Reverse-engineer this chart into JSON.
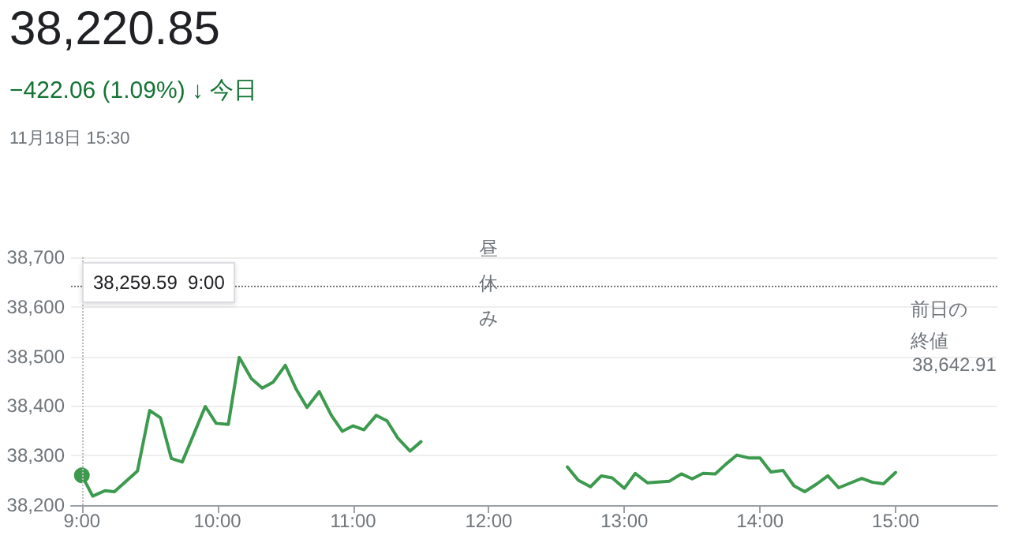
{
  "chart_data": {
    "type": "line",
    "title": "38,220.85",
    "subtitle": "−422.06 (1.09%) ↓ 今日",
    "annotations": [
      "11月18日 15:30",
      "38,259.59  9:00",
      "38,642.91",
      {
        "text": "昼休み",
        "x": 12,
        "y": 38648
      }
    ],
    "x": [
      9,
      9.08,
      9.17,
      9.24,
      9.41,
      9.5,
      9.58,
      9.66,
      9.74,
      9.91,
      9.99,
      10.08,
      10.16,
      10.25,
      10.33,
      10.41,
      10.5,
      10.58,
      10.66,
      10.75,
      10.84,
      10.92,
      11,
      11.08,
      11.17,
      11.25,
      11.33,
      11.42,
      11.5,
      12,
      12.58,
      12.66,
      12.75,
      12.83,
      12.91,
      13,
      13.08,
      13.17,
      13.33,
      13.42,
      13.5,
      13.58,
      13.67,
      13.75,
      13.83,
      13.92,
      14,
      14.08,
      14.17,
      14.25,
      14.33,
      14.42,
      14.5,
      14.58,
      14.67,
      14.75,
      14.83,
      14.91,
      15
    ],
    "series": [
      {
        "color": "#3c9a4e",
        "values": [
          38260,
          38218,
          38229,
          38227,
          38269,
          38391,
          38376,
          38294,
          38287,
          38399,
          38365,
          38363,
          38498,
          38455,
          38436,
          38448,
          38482,
          38434,
          38397,
          38429,
          38381,
          38349,
          38360,
          38352,
          38381,
          38370,
          38335,
          38309,
          38328,
          null,
          38277,
          38250,
          38237,
          38259,
          38255,
          38234,
          38264,
          38245,
          38248,
          38263,
          38253,
          38264,
          38263,
          38283,
          38301,
          38295,
          38295,
          38267,
          38270,
          38239,
          38227,
          38243,
          38259,
          38235,
          38245,
          38254,
          38246,
          38243,
          38266
        ]
      }
    ],
    "xlim": [
      8.92,
      15.75
    ],
    "xticks": [
      {
        "value": 9,
        "label": "9:00"
      },
      {
        "value": 10,
        "label": "10:00"
      },
      {
        "value": 11,
        "label": "11:00"
      },
      {
        "value": 12,
        "label": "12:00"
      },
      {
        "value": 13,
        "label": "13:00"
      },
      {
        "value": 14,
        "label": "14:00"
      },
      {
        "value": 15,
        "label": "15:00"
      }
    ],
    "ylim": [
      38200,
      38700
    ],
    "yticks": [
      {
        "value": 38200,
        "label": "38,200"
      },
      {
        "value": 38300,
        "label": "38,300"
      },
      {
        "value": 38400,
        "label": "38,400"
      },
      {
        "value": 38500,
        "label": "38,500"
      },
      {
        "value": 38600,
        "label": "38,600"
      },
      {
        "value": 38700,
        "label": "38,700"
      }
    ],
    "ref_lines": [
      {
        "axis": "y",
        "value": 38642.91,
        "label": "前日の終値",
        "color": "#777777",
        "line_style": "dotted"
      },
      {
        "axis": "x",
        "value": 9,
        "color": "#bbbbbb",
        "line_style": "dotted"
      }
    ],
    "grid": "y",
    "marker": "none",
    "line_style": "solid"
  }
}
